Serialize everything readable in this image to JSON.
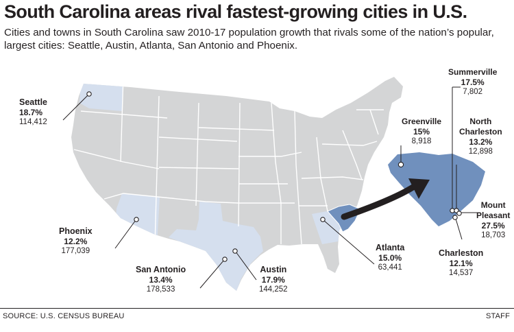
{
  "header": {
    "title": "South Carolina areas rival fastest-growing cities in U.S.",
    "subtitle": "Cities and towns in South Carolina saw 2010-17 population growth that rivals some of the nation’s popular, largest cities: Seattle, Austin, Atlanta, San Antonio and Phoenix."
  },
  "colors": {
    "us_states": "#d4d5d6",
    "state_borders": "#ffffff",
    "comparison_states": "#d5dfee",
    "south_carolina": "#7090bd",
    "arrow": "#231f20"
  },
  "highlighted_states": [
    "Washington",
    "Arizona",
    "Texas",
    "Georgia",
    "South Carolina"
  ],
  "cities": {
    "seattle": {
      "name": "Seattle",
      "growth": "18.7%",
      "population": "114,412"
    },
    "phoenix": {
      "name": "Phoenix",
      "growth": "12.2%",
      "population": "177,039"
    },
    "san_antonio": {
      "name": "San Antonio",
      "growth": "13.4%",
      "population": "178,533"
    },
    "austin": {
      "name": "Austin",
      "growth": "17.9%",
      "population": "144,252"
    },
    "atlanta": {
      "name": "Atlanta",
      "growth": "15.0%",
      "population": "63,441"
    },
    "greenville": {
      "name": "Greenville",
      "growth": "15%",
      "population": "8,918"
    },
    "summerville": {
      "name": "Summerville",
      "growth": "17.5%",
      "population": "7,802"
    },
    "north_charleston": {
      "name": "North Charleston",
      "name_line1": "North",
      "name_line2": "Charleston",
      "growth": "13.2%",
      "population": "12,898"
    },
    "mount_pleasant": {
      "name": "Mount Pleasant",
      "name_line1": "Mount",
      "name_line2": "Pleasant",
      "growth": "27.5%",
      "population": "18,703"
    },
    "charleston": {
      "name": "Charleston",
      "growth": "12.1%",
      "population": "14,537"
    }
  },
  "footer": {
    "source": "SOURCE: U.S. CENSUS BUREAU",
    "credit": "STAFF"
  }
}
